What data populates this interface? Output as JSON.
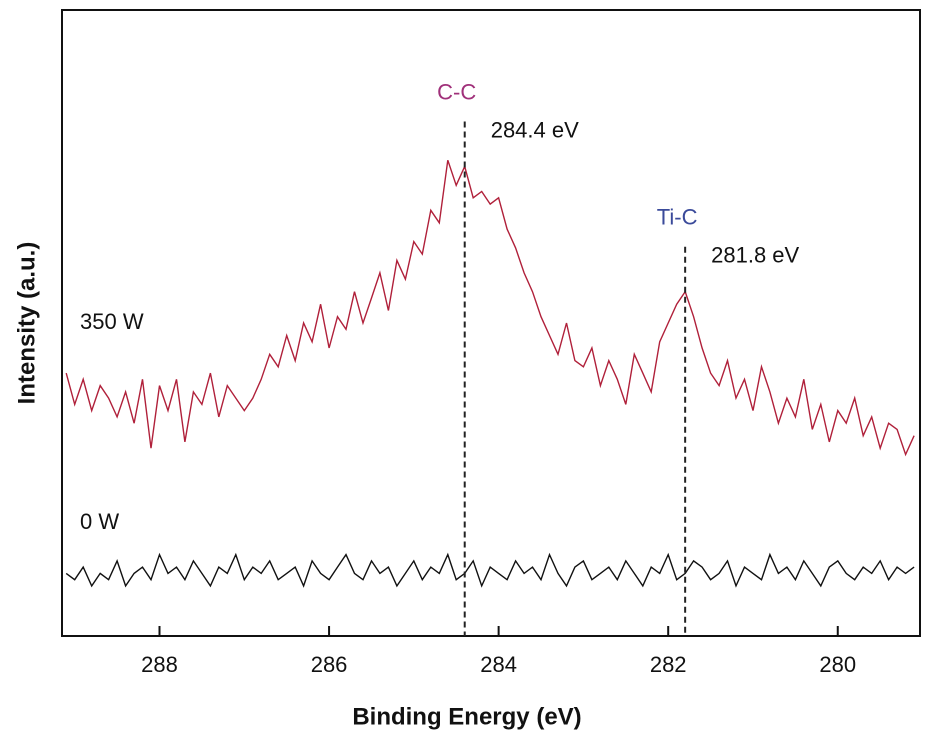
{
  "chart_data": {
    "type": "line",
    "xlabel": "Binding Energy (eV)",
    "ylabel": "Intensity (a.u.)",
    "x": [
      289.1,
      289.0,
      288.9,
      288.8,
      288.7,
      288.6,
      288.5,
      288.4,
      288.3,
      288.2,
      288.1,
      288.0,
      287.9,
      287.8,
      287.7,
      287.6,
      287.5,
      287.4,
      287.3,
      287.2,
      287.1,
      287.0,
      286.9,
      286.8,
      286.7,
      286.6,
      286.5,
      286.4,
      286.3,
      286.2,
      286.1,
      286.0,
      285.9,
      285.8,
      285.7,
      285.6,
      285.5,
      285.4,
      285.3,
      285.2,
      285.1,
      285.0,
      284.9,
      284.8,
      284.7,
      284.6,
      284.5,
      284.4,
      284.3,
      284.2,
      284.1,
      284.0,
      283.9,
      283.8,
      283.7,
      283.6,
      283.5,
      283.4,
      283.3,
      283.2,
      283.1,
      283.0,
      282.9,
      282.8,
      282.7,
      282.6,
      282.5,
      282.4,
      282.3,
      282.2,
      282.1,
      282.0,
      281.9,
      281.8,
      281.7,
      281.6,
      281.5,
      281.4,
      281.3,
      281.2,
      281.1,
      281.0,
      280.9,
      280.8,
      280.7,
      280.6,
      280.5,
      280.4,
      280.3,
      280.2,
      280.1,
      280.0,
      279.9,
      279.8,
      279.7,
      279.6,
      279.5,
      279.4,
      279.3,
      279.2,
      279.1
    ],
    "series": [
      {
        "name": "350 W",
        "color": "#b0203a",
        "values": [
          42,
          37,
          41,
          36,
          40,
          38,
          35,
          39,
          34,
          41,
          30,
          40,
          36,
          41,
          31,
          39,
          37,
          42,
          35,
          40,
          38,
          36,
          38,
          41,
          45,
          43,
          48,
          44,
          50,
          47,
          53,
          46,
          51,
          49,
          55,
          50,
          54,
          58,
          52,
          60,
          57,
          63,
          61,
          68,
          66,
          76,
          72,
          75,
          70,
          71,
          69,
          70,
          65,
          62,
          58,
          55,
          51,
          48,
          45,
          50,
          44,
          43,
          46,
          40,
          44,
          41,
          37,
          45,
          42,
          39,
          47,
          50,
          53,
          55,
          51,
          46,
          42,
          40,
          44,
          38,
          41,
          36,
          43,
          39,
          34,
          38,
          35,
          41,
          33,
          37,
          31,
          36,
          34,
          38,
          32,
          35,
          30,
          34,
          33,
          29,
          32
        ]
      },
      {
        "name": "0 W",
        "color": "#111111",
        "values": [
          10,
          9,
          11,
          8,
          10,
          9,
          12,
          8,
          10,
          11,
          9,
          13,
          10,
          11,
          9,
          12,
          10,
          8,
          11,
          10,
          13,
          9,
          11,
          10,
          12,
          9,
          10,
          11,
          8,
          12,
          10,
          9,
          11,
          13,
          10,
          9,
          12,
          10,
          11,
          8,
          10,
          12,
          9,
          11,
          10,
          13,
          9,
          10,
          12,
          8,
          11,
          10,
          9,
          12,
          10,
          11,
          9,
          13,
          10,
          8,
          11,
          12,
          9,
          10,
          11,
          9,
          12,
          10,
          8,
          11,
          10,
          13,
          9,
          10,
          12,
          11,
          9,
          10,
          12,
          8,
          11,
          10,
          9,
          13,
          10,
          11,
          9,
          12,
          10,
          8,
          11,
          12,
          10,
          9,
          11,
          10,
          12,
          9,
          11,
          10,
          11
        ]
      }
    ],
    "markers": [
      {
        "name": "C-C",
        "x": 284.4,
        "label": "284.4 eV",
        "color": "#a0307a"
      },
      {
        "name": "Ti-C",
        "x": 281.8,
        "label": "281.8 eV",
        "color": "#3a4a9a"
      }
    ],
    "xlim": [
      289.15,
      279.03
    ],
    "xticks": [
      288,
      286,
      284,
      282,
      280
    ],
    "ylim": [
      0,
      100
    ]
  }
}
